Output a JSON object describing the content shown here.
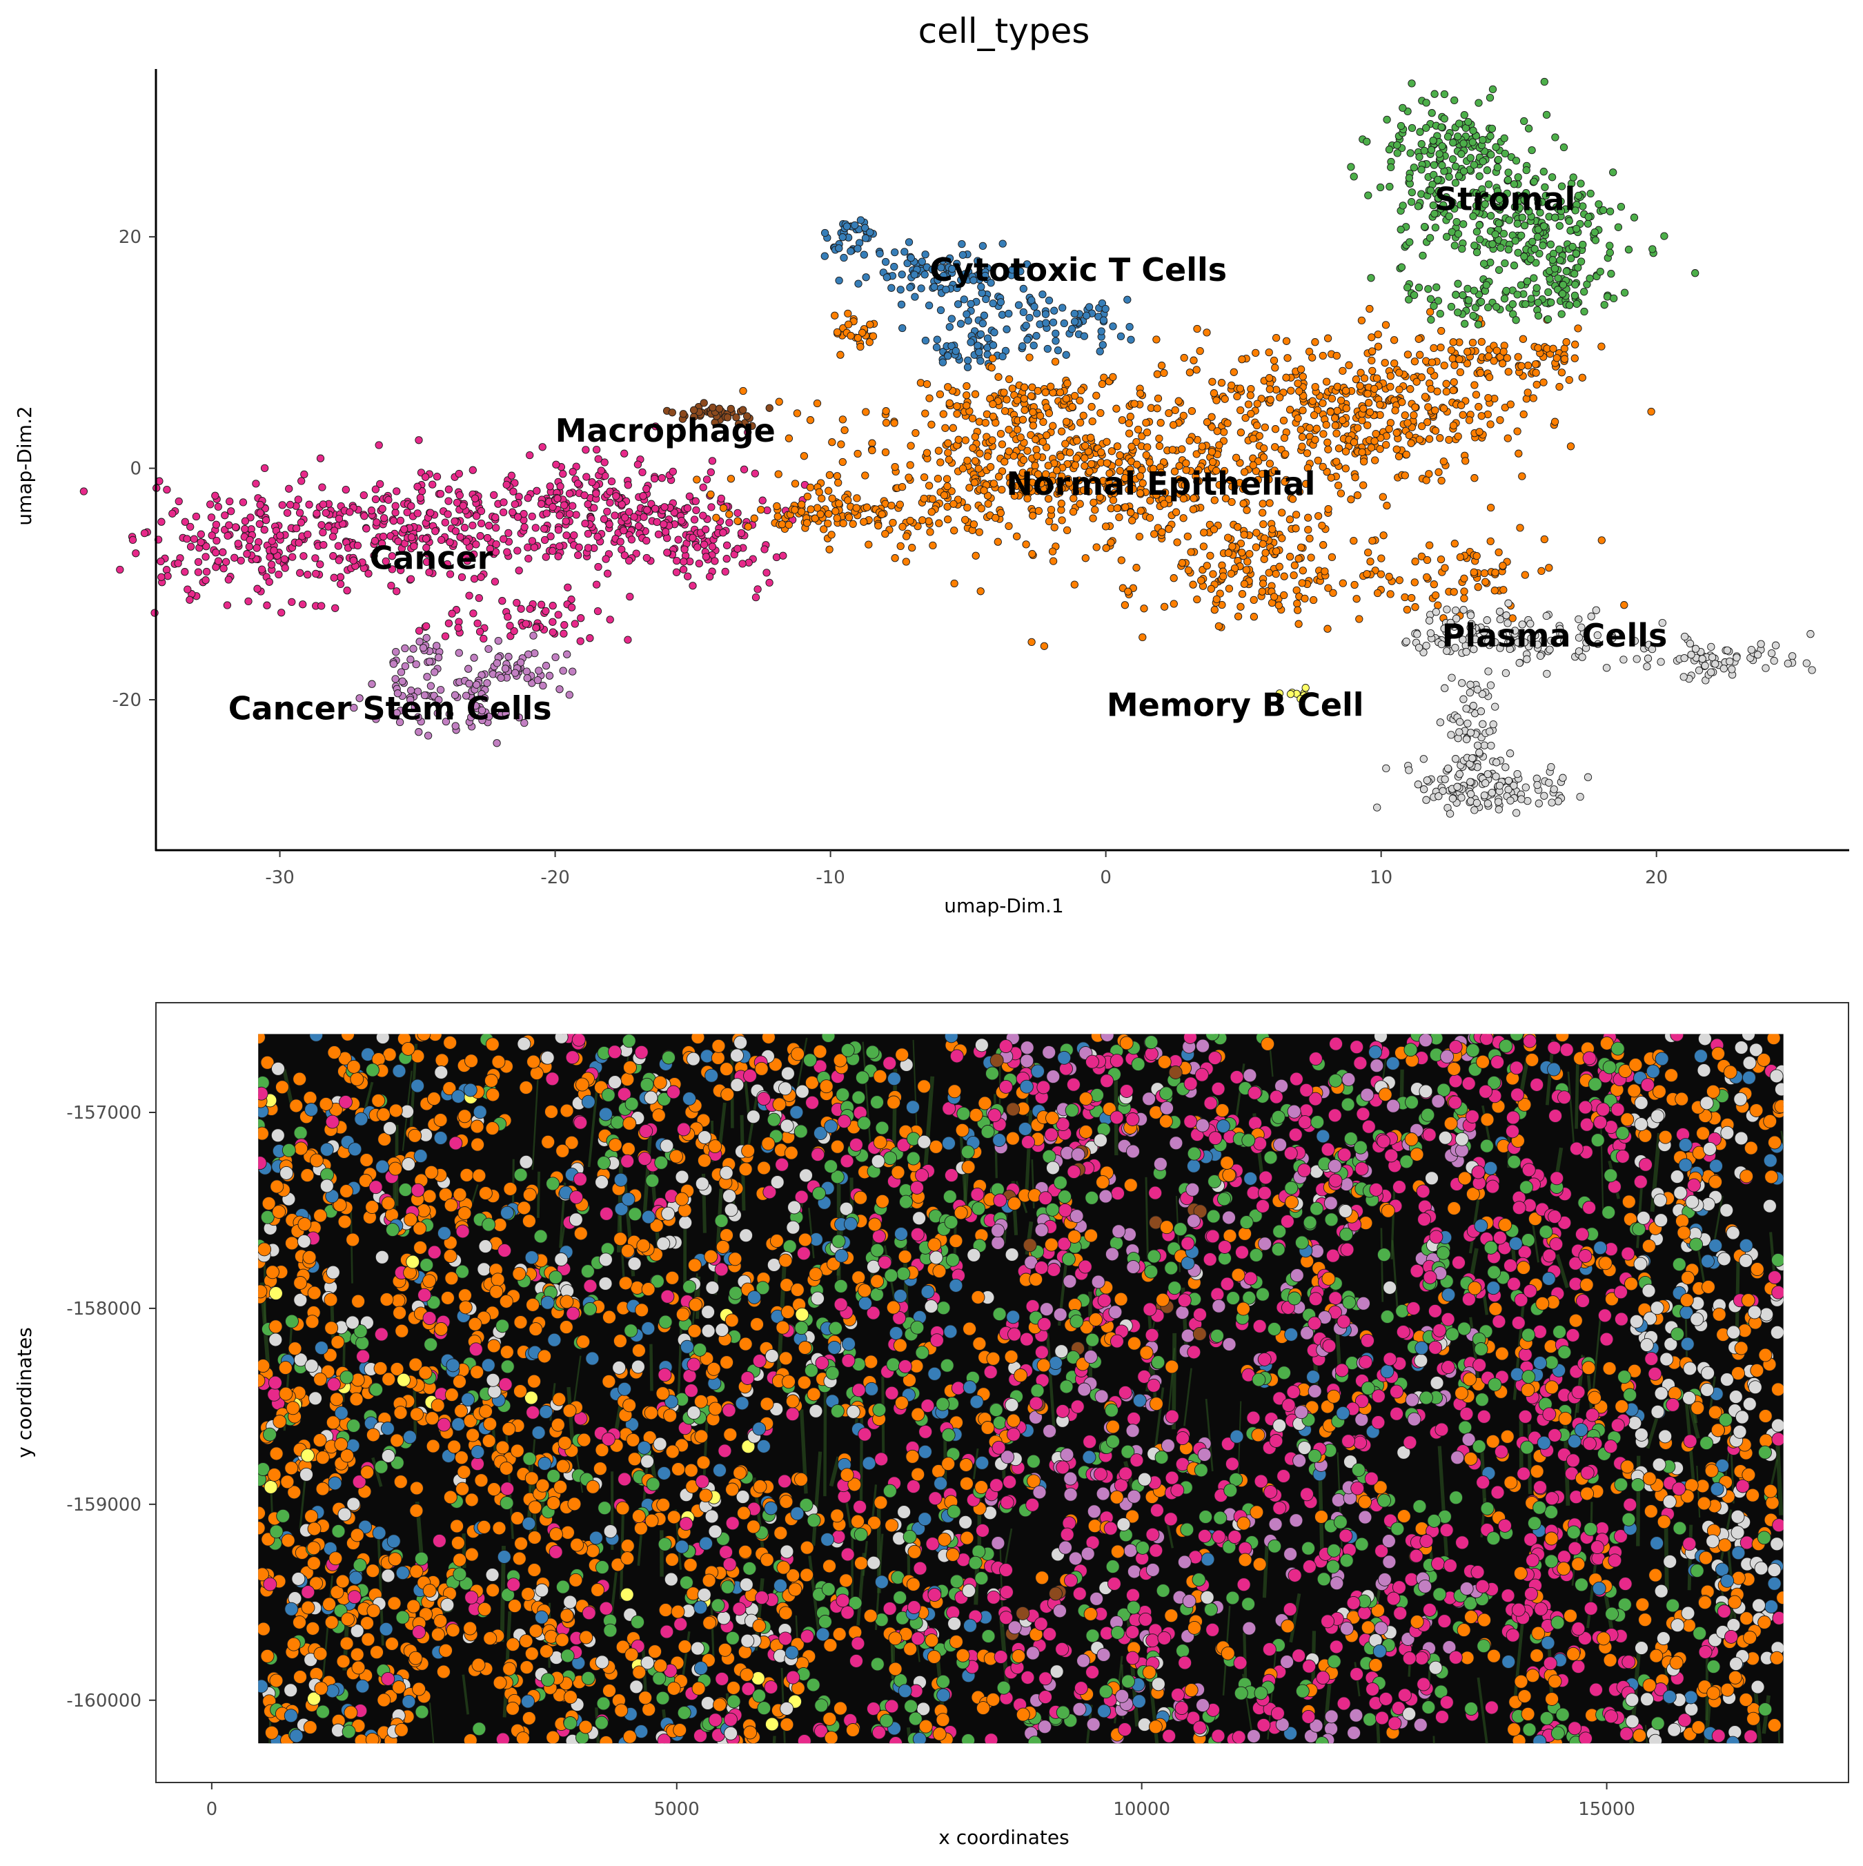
{
  "colors": {
    "Cancer": "#e7298a",
    "Cancer Stem Cells": "#c27fc2",
    "Macrophage": "#8c4a1e",
    "Cytotoxic T Cells": "#377eb8",
    "Normal Epithelial": "#ff7f00",
    "Stromal": "#4daf4a",
    "Plasma Cells": "#d9d9d9",
    "Memory B Cell": "#ffff66",
    "tissue_background": "#0a0a0a",
    "tissue_green": "#2f5a22"
  },
  "chart_data": [
    {
      "type": "scatter",
      "title": "cell_types",
      "xlabel": "umap-Dim.1",
      "ylabel": "umap-Dim.2",
      "xlim": [
        -34.5,
        27.0
      ],
      "ylim": [
        -33.0,
        34.5
      ],
      "xticks": [
        -30,
        -20,
        -10,
        0,
        10,
        20
      ],
      "xtick_labels": [
        "-30",
        "-20",
        "-10",
        "0",
        "10",
        "20"
      ],
      "yticks": [
        -20,
        0,
        20
      ],
      "ytick_labels": [
        "-20",
        "0",
        "20"
      ],
      "grid": false,
      "clusters": [
        {
          "name": "Cancer",
          "label_at": [
            -24.5,
            -8.7
          ],
          "regions": [
            [
              -30.5,
              -7.0,
              3.0,
              3.5,
              220
            ],
            [
              -24.0,
              -5.0,
              3.5,
              3.0,
              260
            ],
            [
              -18.0,
              -3.5,
              3.0,
              3.0,
              230
            ],
            [
              -14.5,
              -6.5,
              1.8,
              2.5,
              90
            ],
            [
              -21.0,
              -13.0,
              2.0,
              1.5,
              60
            ]
          ]
        },
        {
          "name": "Cancer Stem Cells",
          "label_at": [
            -26.0,
            -21.7
          ],
          "regions": [
            [
              -23.5,
              -19.5,
              1.8,
              2.5,
              90
            ],
            [
              -21.0,
              -17.0,
              1.0,
              1.2,
              40
            ],
            [
              -24.5,
              -16.0,
              1.0,
              1.0,
              20
            ]
          ]
        },
        {
          "name": "Macrophage",
          "label_at": [
            -16.0,
            2.3
          ],
          "regions": [
            [
              -14.3,
              4.8,
              0.9,
              0.6,
              45
            ]
          ]
        },
        {
          "name": "Cytotoxic T Cells",
          "label_at": [
            -1.0,
            16.2
          ],
          "regions": [
            [
              -9.3,
              20.0,
              0.6,
              1.5,
              40
            ],
            [
              -6.0,
              17.0,
              2.0,
              1.5,
              90
            ],
            [
              -3.0,
              13.0,
              2.5,
              2.0,
              110
            ],
            [
              -5.0,
              10.0,
              1.0,
              1.0,
              30
            ]
          ]
        },
        {
          "name": "Normal Epithelial",
          "label_at": [
            2.0,
            -2.3
          ],
          "regions": [
            [
              -1.0,
              0.0,
              6.0,
              5.0,
              650
            ],
            [
              9.5,
              5.0,
              4.5,
              4.0,
              420
            ],
            [
              -9.0,
              -4.0,
              3.0,
              1.2,
              110
            ],
            [
              5.0,
              -9.0,
              3.0,
              3.0,
              160
            ],
            [
              12.5,
              -9.0,
              2.5,
              2.0,
              80
            ],
            [
              14.5,
              10.0,
              2.0,
              1.5,
              70
            ],
            [
              -9.0,
              12.0,
              0.7,
              1.5,
              25
            ],
            [
              -3.0,
              6.0,
              2.0,
              1.5,
              80
            ]
          ]
        },
        {
          "name": "Stromal",
          "label_at": [
            14.5,
            22.3
          ],
          "regions": [
            [
              12.5,
              27.0,
              2.0,
              3.0,
              180
            ],
            [
              15.0,
              21.0,
              2.5,
              3.0,
              220
            ],
            [
              17.0,
              17.0,
              1.2,
              2.5,
              70
            ],
            [
              14.0,
              15.0,
              2.5,
              1.5,
              80
            ]
          ]
        },
        {
          "name": "Plasma Cells",
          "label_at": [
            16.3,
            -15.4
          ],
          "regions": [
            [
              12.5,
              -14.0,
              1.5,
              1.5,
              60
            ],
            [
              16.0,
              -15.0,
              2.0,
              1.5,
              70
            ],
            [
              22.0,
              -16.5,
              2.0,
              1.2,
              70
            ],
            [
              13.5,
              -23.0,
              0.8,
              3.5,
              60
            ],
            [
              14.0,
              -27.5,
              2.0,
              1.5,
              120
            ]
          ]
        },
        {
          "name": "Memory B Cell",
          "label_at": [
            4.7,
            -21.4
          ],
          "regions": [
            [
              6.8,
              -19.2,
              0.4,
              0.5,
              8
            ]
          ]
        }
      ]
    },
    {
      "type": "scatter",
      "xlabel": "x coordinates",
      "ylabel": "y coordinates",
      "xlim": [
        -600,
        17600
      ],
      "ylim": [
        -160420,
        -156440
      ],
      "xticks": [
        0,
        5000,
        10000,
        15000
      ],
      "xtick_labels": [
        "0",
        "5000",
        "10000",
        "15000"
      ],
      "yticks": [
        -157000,
        -158000,
        -159000,
        -160000
      ],
      "ytick_labels": [
        "-157000",
        "-158000",
        "-159000",
        "-160000"
      ],
      "grid": false,
      "image_extent": {
        "x": [
          500,
          16900
        ],
        "y": [
          -160220,
          -156600
        ]
      }
    }
  ]
}
